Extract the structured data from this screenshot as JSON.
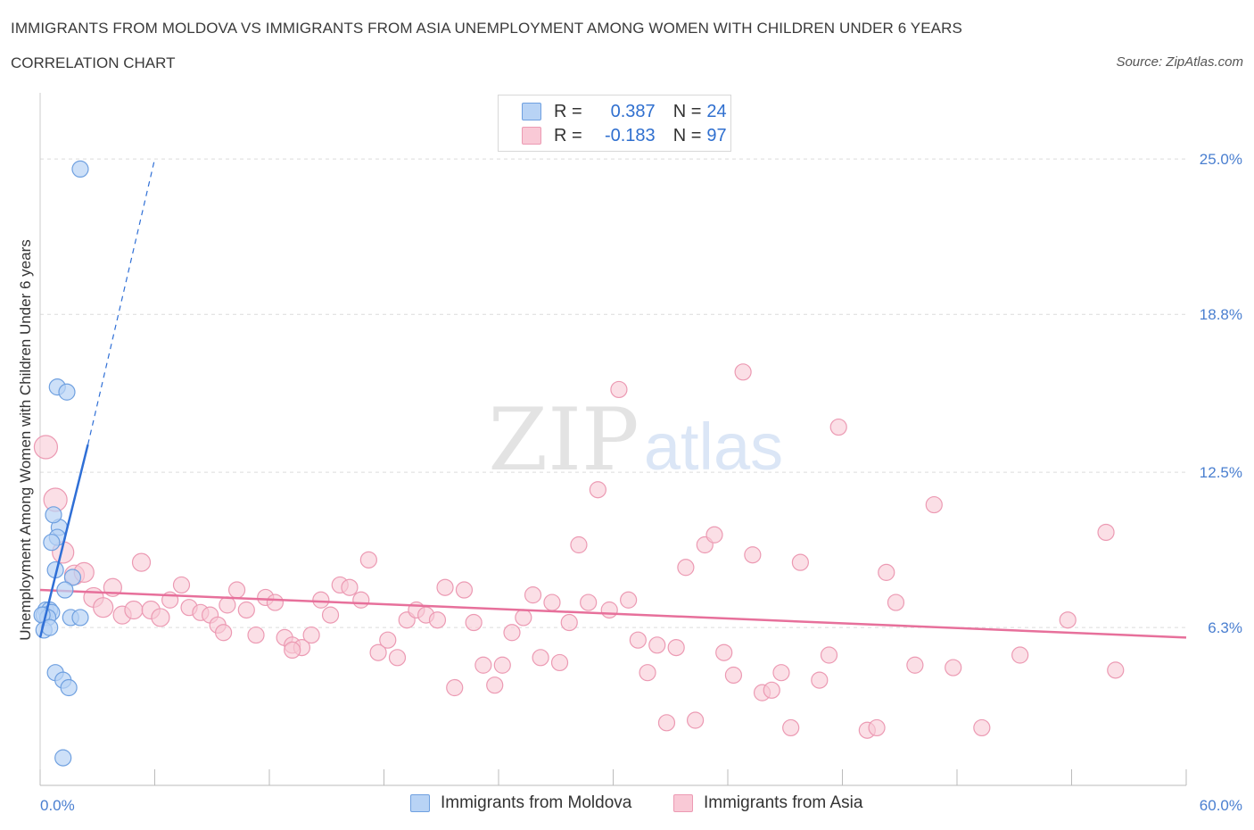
{
  "title": "IMMIGRANTS FROM MOLDOVA VS IMMIGRANTS FROM ASIA UNEMPLOYMENT AMONG WOMEN WITH CHILDREN UNDER 6 YEARS",
  "subtitle": "CORRELATION CHART",
  "source": "Source: ZipAtlas.com",
  "watermark": {
    "zip": "ZIP",
    "atlas": "atlas"
  },
  "colors": {
    "moldova_fill": "#b8d3f5",
    "moldova_stroke": "#6fa0e0",
    "moldova_line": "#2f6fd6",
    "asia_fill": "#f9c9d6",
    "asia_stroke": "#ec9ab3",
    "asia_line": "#e7709b",
    "accent": "#4a7fd0"
  },
  "legend": {
    "moldova": {
      "r_label": "R =",
      "r_value": "0.387",
      "n_label": "N =",
      "n_value": "24"
    },
    "asia": {
      "r_label": "R =",
      "r_value": "-0.183",
      "n_label": "N =",
      "n_value": "97"
    }
  },
  "chart_data": {
    "type": "scatter",
    "title": "IMMIGRANTS FROM MOLDOVA VS IMMIGRANTS FROM ASIA UNEMPLOYMENT AMONG WOMEN WITH CHILDREN UNDER 6 YEARS",
    "subtitle": "CORRELATION CHART",
    "xlabel": "",
    "ylabel": "Unemployment Among Women with Children Under 6 years",
    "xlim": [
      0,
      60
    ],
    "ylim": [
      0,
      27.5
    ],
    "x_tick_labels": [
      "0.0%",
      "60.0%"
    ],
    "y_ticks": [
      6.3,
      12.5,
      18.8,
      25.0
    ],
    "y_tick_labels": [
      "6.3%",
      "12.5%",
      "18.8%",
      "25.0%"
    ],
    "grid": true,
    "legend_position": "top-center",
    "series": [
      {
        "name": "Immigrants from Moldova",
        "R": 0.387,
        "N": 24,
        "trend": {
          "x_start": 0.0,
          "y_start": 5.9,
          "x_end": 2.5,
          "y_end": 13.6,
          "dashed_to_x": 6.0,
          "dashed_to_y": 25.0
        },
        "points": [
          {
            "x": 2.1,
            "y": 24.6,
            "s": 9
          },
          {
            "x": 0.9,
            "y": 15.9,
            "s": 9
          },
          {
            "x": 1.4,
            "y": 15.7,
            "s": 9
          },
          {
            "x": 1.0,
            "y": 10.3,
            "s": 9
          },
          {
            "x": 0.7,
            "y": 10.8,
            "s": 9
          },
          {
            "x": 0.9,
            "y": 9.9,
            "s": 9
          },
          {
            "x": 0.6,
            "y": 9.7,
            "s": 9
          },
          {
            "x": 0.8,
            "y": 8.6,
            "s": 9
          },
          {
            "x": 1.7,
            "y": 8.3,
            "s": 9
          },
          {
            "x": 1.3,
            "y": 7.8,
            "s": 9
          },
          {
            "x": 0.3,
            "y": 7.0,
            "s": 9
          },
          {
            "x": 0.5,
            "y": 7.0,
            "s": 9
          },
          {
            "x": 0.2,
            "y": 6.8,
            "s": 9
          },
          {
            "x": 0.6,
            "y": 6.9,
            "s": 9
          },
          {
            "x": 0.4,
            "y": 6.7,
            "s": 9
          },
          {
            "x": 0.1,
            "y": 6.8,
            "s": 9
          },
          {
            "x": 1.6,
            "y": 6.7,
            "s": 9
          },
          {
            "x": 2.1,
            "y": 6.7,
            "s": 9
          },
          {
            "x": 0.2,
            "y": 6.2,
            "s": 9
          },
          {
            "x": 0.5,
            "y": 6.3,
            "s": 9
          },
          {
            "x": 0.8,
            "y": 4.5,
            "s": 9
          },
          {
            "x": 1.2,
            "y": 4.2,
            "s": 9
          },
          {
            "x": 1.5,
            "y": 3.9,
            "s": 9
          },
          {
            "x": 1.2,
            "y": 1.1,
            "s": 9
          }
        ]
      },
      {
        "name": "Immigrants from Asia",
        "R": -0.183,
        "N": 97,
        "trend": {
          "x_start": 0.0,
          "y_start": 7.8,
          "x_end": 60.0,
          "y_end": 5.9
        },
        "points": [
          {
            "x": 0.3,
            "y": 13.5,
            "s": 13
          },
          {
            "x": 0.8,
            "y": 11.4,
            "s": 13
          },
          {
            "x": 1.2,
            "y": 9.3,
            "s": 12
          },
          {
            "x": 1.8,
            "y": 8.4,
            "s": 11
          },
          {
            "x": 2.3,
            "y": 8.5,
            "s": 11
          },
          {
            "x": 2.8,
            "y": 7.5,
            "s": 11
          },
          {
            "x": 3.3,
            "y": 7.1,
            "s": 11
          },
          {
            "x": 3.8,
            "y": 7.9,
            "s": 10
          },
          {
            "x": 4.3,
            "y": 6.8,
            "s": 10
          },
          {
            "x": 4.9,
            "y": 7.0,
            "s": 10
          },
          {
            "x": 5.3,
            "y": 8.9,
            "s": 10
          },
          {
            "x": 5.8,
            "y": 7.0,
            "s": 10
          },
          {
            "x": 6.3,
            "y": 6.7,
            "s": 10
          },
          {
            "x": 6.8,
            "y": 7.4,
            "s": 9
          },
          {
            "x": 7.4,
            "y": 8.0,
            "s": 9
          },
          {
            "x": 7.8,
            "y": 7.1,
            "s": 9
          },
          {
            "x": 8.4,
            "y": 6.9,
            "s": 9
          },
          {
            "x": 8.9,
            "y": 6.8,
            "s": 9
          },
          {
            "x": 9.3,
            "y": 6.4,
            "s": 9
          },
          {
            "x": 9.8,
            "y": 7.2,
            "s": 9
          },
          {
            "x": 10.3,
            "y": 7.8,
            "s": 9
          },
          {
            "x": 10.8,
            "y": 7.0,
            "s": 9
          },
          {
            "x": 11.3,
            "y": 6.0,
            "s": 9
          },
          {
            "x": 11.8,
            "y": 7.5,
            "s": 9
          },
          {
            "x": 12.3,
            "y": 7.3,
            "s": 9
          },
          {
            "x": 12.8,
            "y": 5.9,
            "s": 9
          },
          {
            "x": 13.2,
            "y": 5.6,
            "s": 9
          },
          {
            "x": 13.7,
            "y": 5.5,
            "s": 9
          },
          {
            "x": 14.2,
            "y": 6.0,
            "s": 9
          },
          {
            "x": 14.7,
            "y": 7.4,
            "s": 9
          },
          {
            "x": 15.2,
            "y": 6.8,
            "s": 9
          },
          {
            "x": 15.7,
            "y": 8.0,
            "s": 9
          },
          {
            "x": 16.2,
            "y": 7.9,
            "s": 9
          },
          {
            "x": 16.8,
            "y": 7.4,
            "s": 9
          },
          {
            "x": 17.2,
            "y": 9.0,
            "s": 9
          },
          {
            "x": 17.7,
            "y": 5.3,
            "s": 9
          },
          {
            "x": 18.2,
            "y": 5.8,
            "s": 9
          },
          {
            "x": 18.7,
            "y": 5.1,
            "s": 9
          },
          {
            "x": 19.2,
            "y": 6.6,
            "s": 9
          },
          {
            "x": 19.7,
            "y": 7.0,
            "s": 9
          },
          {
            "x": 20.2,
            "y": 6.8,
            "s": 9
          },
          {
            "x": 20.8,
            "y": 6.6,
            "s": 9
          },
          {
            "x": 21.2,
            "y": 7.9,
            "s": 9
          },
          {
            "x": 21.7,
            "y": 3.9,
            "s": 9
          },
          {
            "x": 22.2,
            "y": 7.8,
            "s": 9
          },
          {
            "x": 22.7,
            "y": 6.5,
            "s": 9
          },
          {
            "x": 23.2,
            "y": 4.8,
            "s": 9
          },
          {
            "x": 23.8,
            "y": 4.0,
            "s": 9
          },
          {
            "x": 24.2,
            "y": 4.8,
            "s": 9
          },
          {
            "x": 24.7,
            "y": 6.1,
            "s": 9
          },
          {
            "x": 25.3,
            "y": 6.7,
            "s": 9
          },
          {
            "x": 25.8,
            "y": 7.6,
            "s": 9
          },
          {
            "x": 26.2,
            "y": 5.1,
            "s": 9
          },
          {
            "x": 26.8,
            "y": 7.3,
            "s": 9
          },
          {
            "x": 27.2,
            "y": 4.9,
            "s": 9
          },
          {
            "x": 27.7,
            "y": 6.5,
            "s": 9
          },
          {
            "x": 28.2,
            "y": 9.6,
            "s": 9
          },
          {
            "x": 28.7,
            "y": 7.3,
            "s": 9
          },
          {
            "x": 29.2,
            "y": 11.8,
            "s": 9
          },
          {
            "x": 29.8,
            "y": 7.0,
            "s": 9
          },
          {
            "x": 30.3,
            "y": 15.8,
            "s": 9
          },
          {
            "x": 30.8,
            "y": 7.4,
            "s": 9
          },
          {
            "x": 31.3,
            "y": 5.8,
            "s": 9
          },
          {
            "x": 31.8,
            "y": 4.5,
            "s": 9
          },
          {
            "x": 32.3,
            "y": 5.6,
            "s": 9
          },
          {
            "x": 32.8,
            "y": 2.5,
            "s": 9
          },
          {
            "x": 33.3,
            "y": 5.5,
            "s": 9
          },
          {
            "x": 33.8,
            "y": 8.7,
            "s": 9
          },
          {
            "x": 34.3,
            "y": 2.6,
            "s": 9
          },
          {
            "x": 34.8,
            "y": 9.6,
            "s": 9
          },
          {
            "x": 35.3,
            "y": 10.0,
            "s": 9
          },
          {
            "x": 35.8,
            "y": 5.3,
            "s": 9
          },
          {
            "x": 36.3,
            "y": 4.4,
            "s": 9
          },
          {
            "x": 36.8,
            "y": 16.5,
            "s": 9
          },
          {
            "x": 37.3,
            "y": 9.2,
            "s": 9
          },
          {
            "x": 37.8,
            "y": 3.7,
            "s": 9
          },
          {
            "x": 38.3,
            "y": 3.8,
            "s": 9
          },
          {
            "x": 38.8,
            "y": 4.5,
            "s": 9
          },
          {
            "x": 39.3,
            "y": 2.3,
            "s": 9
          },
          {
            "x": 39.8,
            "y": 8.9,
            "s": 9
          },
          {
            "x": 40.8,
            "y": 4.2,
            "s": 9
          },
          {
            "x": 41.3,
            "y": 5.2,
            "s": 9
          },
          {
            "x": 41.8,
            "y": 14.3,
            "s": 9
          },
          {
            "x": 43.3,
            "y": 2.2,
            "s": 9
          },
          {
            "x": 43.8,
            "y": 2.3,
            "s": 9
          },
          {
            "x": 44.3,
            "y": 8.5,
            "s": 9
          },
          {
            "x": 44.8,
            "y": 7.3,
            "s": 9
          },
          {
            "x": 45.8,
            "y": 4.8,
            "s": 9
          },
          {
            "x": 46.8,
            "y": 11.2,
            "s": 9
          },
          {
            "x": 47.8,
            "y": 4.7,
            "s": 9
          },
          {
            "x": 49.3,
            "y": 2.3,
            "s": 9
          },
          {
            "x": 51.3,
            "y": 5.2,
            "s": 9
          },
          {
            "x": 53.8,
            "y": 6.6,
            "s": 9
          },
          {
            "x": 55.8,
            "y": 10.1,
            "s": 9
          },
          {
            "x": 56.3,
            "y": 4.6,
            "s": 9
          },
          {
            "x": 13.2,
            "y": 5.4,
            "s": 9
          },
          {
            "x": 9.6,
            "y": 6.1,
            "s": 9
          }
        ]
      }
    ]
  },
  "bottom_legend": {
    "moldova": "Immigrants from Moldova",
    "asia": "Immigrants from Asia"
  }
}
